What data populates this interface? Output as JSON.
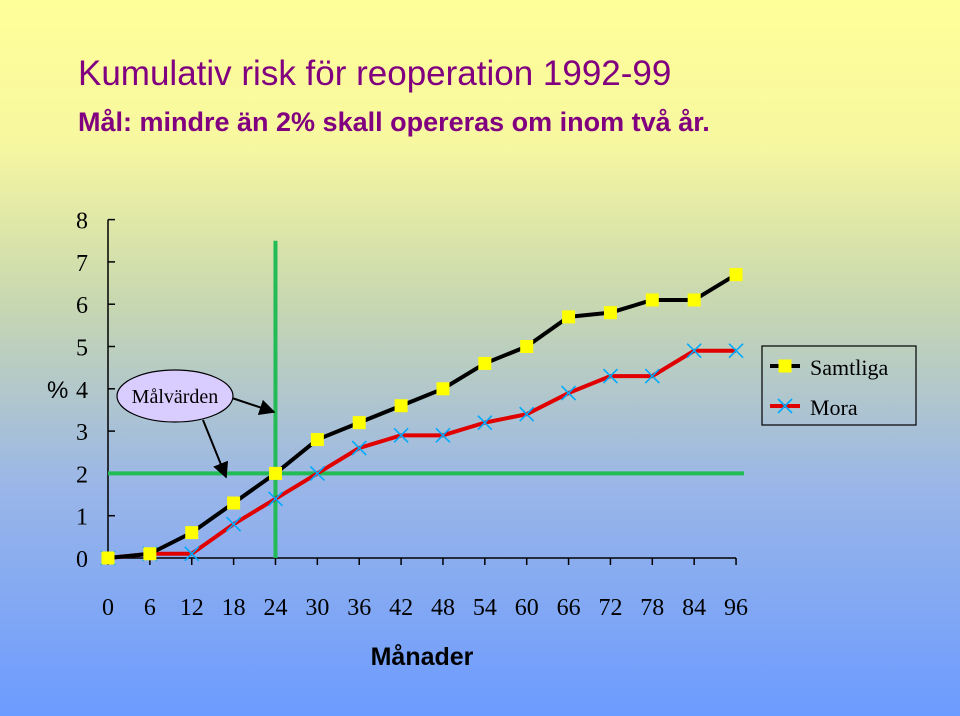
{
  "slide": {
    "title": "Kumulativ risk för reoperation 1992-99",
    "subtitle": "Mål: mindre än 2% skall opereras om inom två år.",
    "title_color": "#800080"
  },
  "chart_data": {
    "type": "line",
    "ylabel": "%",
    "xlabel": "Månader",
    "ylim": [
      0,
      8
    ],
    "xlim": [
      0,
      96
    ],
    "yticks": [
      "0",
      "1",
      "2",
      "3",
      "4",
      "5",
      "6",
      "7",
      "8"
    ],
    "xticks": [
      "0",
      "6",
      "12",
      "18",
      "24",
      "30",
      "36",
      "42",
      "48",
      "54",
      "60",
      "66",
      "72",
      "78",
      "84",
      "96"
    ],
    "x": [
      0,
      6,
      12,
      18,
      24,
      30,
      36,
      42,
      48,
      54,
      60,
      66,
      72,
      78,
      84,
      96
    ],
    "series": [
      {
        "name": "Samtliga",
        "color": "#000000",
        "marker": "square",
        "marker_color": "#ffff00",
        "values": [
          0.0,
          0.1,
          0.6,
          1.3,
          2.0,
          2.8,
          3.2,
          3.6,
          4.0,
          4.6,
          5.0,
          5.7,
          5.8,
          6.1,
          6.1,
          6.7
        ]
      },
      {
        "name": "Mora",
        "color": "#e00000",
        "marker": "x",
        "marker_color": "#00aaff",
        "values": [
          0.0,
          0.1,
          0.1,
          0.8,
          1.4,
          2.0,
          2.6,
          2.9,
          2.9,
          3.2,
          3.4,
          3.9,
          4.3,
          4.3,
          4.9,
          4.9
        ]
      }
    ],
    "target_lines": {
      "x": 24,
      "y": 2,
      "color": "#22bb55"
    },
    "annotation": "Målvärden",
    "legend_position": "right"
  }
}
